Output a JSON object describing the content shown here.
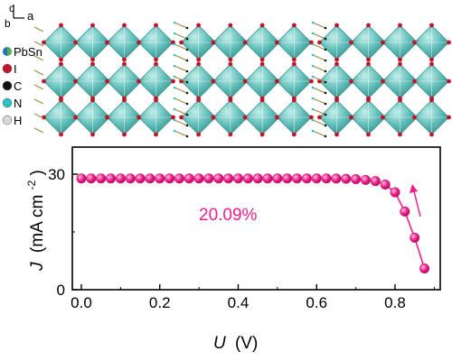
{
  "structure_panel": {
    "axis_labels": {
      "c": "c",
      "b": "b",
      "a": "a"
    },
    "legend": [
      {
        "label": "PbSn",
        "color": "#2e6fb4",
        "color2": "#4caf50",
        "icon": "half-sphere-icon"
      },
      {
        "label": "I",
        "color": "#c0162b",
        "icon": "sphere-icon"
      },
      {
        "label": "C",
        "color": "#111111",
        "icon": "sphere-icon"
      },
      {
        "label": "N",
        "color": "#2bc3c8",
        "icon": "sphere-icon"
      },
      {
        "label": "H",
        "color": "#d8d8d8",
        "icon": "sphere-icon"
      }
    ],
    "colors": {
      "octahedron": "#4fb7b2",
      "octahedron_dark": "#2f8f8a",
      "iodide": "#c0162b",
      "organic": "#9a8a3a"
    }
  },
  "chart_data": {
    "type": "line",
    "title": "",
    "xlabel_var": "U",
    "xlabel_unit": "(V)",
    "ylabel_var": "J",
    "ylabel_unit_main": "(mA cm",
    "ylabel_unit_sup": "-2",
    "ylabel_unit_end": ")",
    "xlim": [
      0.0,
      0.9
    ],
    "ylim": [
      0,
      30
    ],
    "xticks": [
      0.0,
      0.2,
      0.4,
      0.6,
      0.8
    ],
    "xtick_labels": [
      "0.0",
      "0.2",
      "0.4",
      "0.6",
      "0.8"
    ],
    "yticks": [
      0,
      30
    ],
    "ytick_labels": [
      "0",
      "30"
    ],
    "annotation": "20.09%",
    "scan_arrow": "up",
    "series": [
      {
        "name": "J-U curve",
        "color": "#ee1f8b",
        "x": [
          0.0,
          0.025,
          0.05,
          0.075,
          0.1,
          0.125,
          0.15,
          0.175,
          0.2,
          0.225,
          0.25,
          0.275,
          0.3,
          0.325,
          0.35,
          0.375,
          0.4,
          0.425,
          0.45,
          0.475,
          0.5,
          0.525,
          0.55,
          0.575,
          0.6,
          0.625,
          0.65,
          0.675,
          0.7,
          0.725,
          0.75,
          0.775,
          0.8,
          0.825,
          0.85,
          0.875
        ],
        "y": [
          28.9,
          28.9,
          28.9,
          28.9,
          28.9,
          28.9,
          28.9,
          28.9,
          28.9,
          28.9,
          28.9,
          28.9,
          28.9,
          28.9,
          28.9,
          28.9,
          28.9,
          28.9,
          28.9,
          28.9,
          28.9,
          28.9,
          28.9,
          28.9,
          28.9,
          28.9,
          28.85,
          28.8,
          28.7,
          28.5,
          28.2,
          27.3,
          25.3,
          20.3,
          13.5,
          5.5
        ]
      }
    ]
  }
}
